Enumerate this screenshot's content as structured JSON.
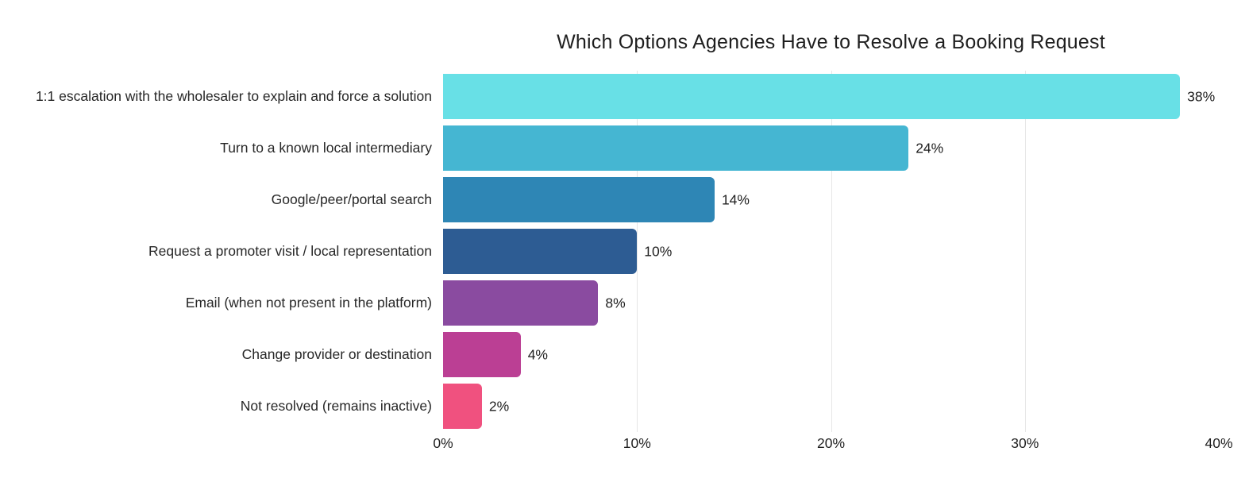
{
  "chart_data": {
    "type": "bar",
    "orientation": "horizontal",
    "title": "Which Options Agencies Have to Resolve a Booking Request",
    "categories": [
      "1:1 escalation with the wholesaler to explain and force a solution",
      "Turn to a known local intermediary",
      "Google/peer/portal search",
      "Request a promoter visit / local representation",
      "Email (when not present in the platform)",
      "Change provider or destination",
      "Not resolved (remains inactive)"
    ],
    "values": [
      38,
      24,
      14,
      10,
      8,
      4,
      2
    ],
    "value_labels": [
      "38%",
      "24%",
      "14%",
      "10%",
      "8%",
      "4%",
      "2%"
    ],
    "bar_colors": [
      "#68e0e6",
      "#45b6d2",
      "#2e86b5",
      "#2d5c93",
      "#8a4ba0",
      "#bb3f94",
      "#f0517f"
    ],
    "xlabel": "",
    "ylabel": "",
    "xlim": [
      0,
      40
    ],
    "x_ticks": [
      "0%",
      "10%",
      "20%",
      "30%",
      "40%"
    ],
    "x_tick_values": [
      0,
      10,
      20,
      30,
      40
    ],
    "grid": "vertical-interior-only",
    "gridline_color": "#e6e6e6",
    "legend_position": "none",
    "background_color": "#ffffff"
  }
}
